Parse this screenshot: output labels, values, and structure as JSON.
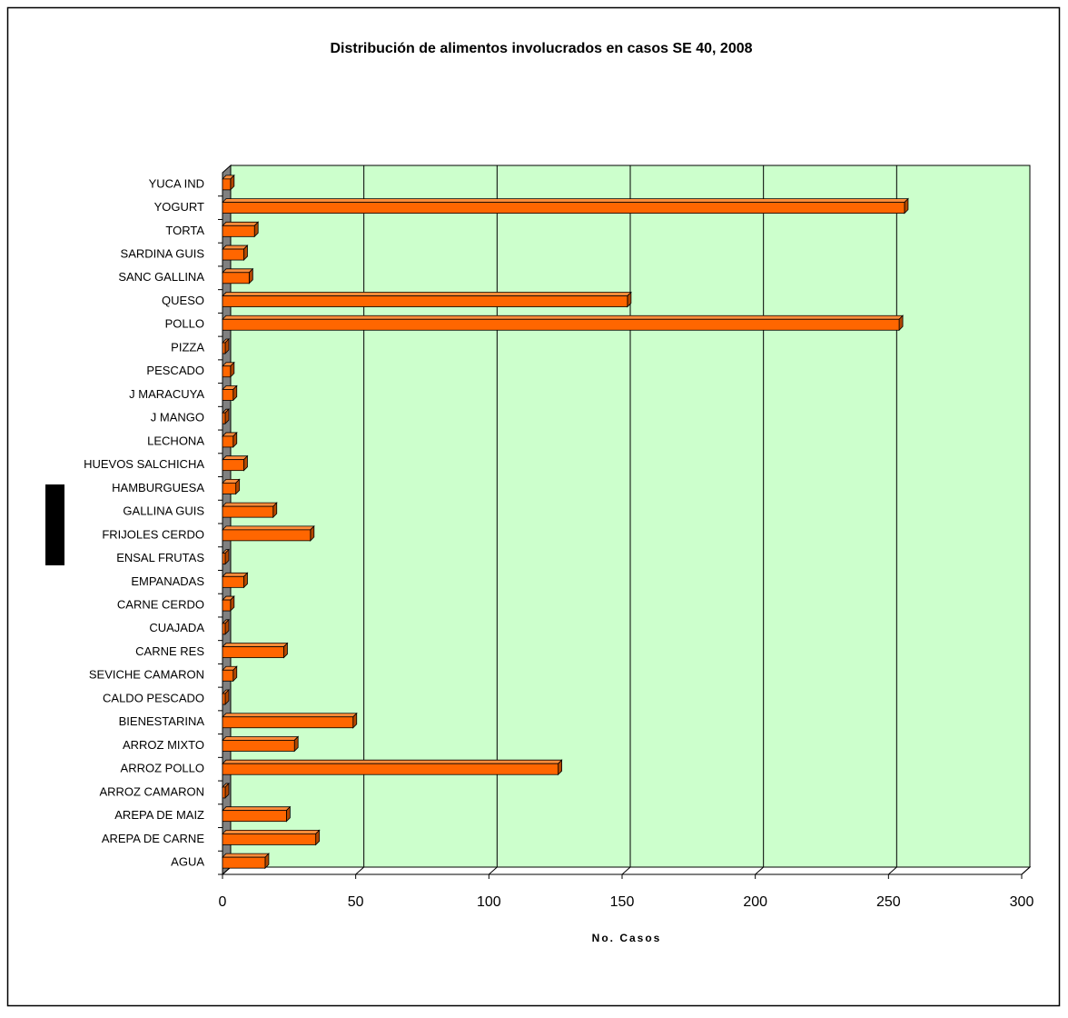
{
  "chart_data": {
    "type": "bar3d-horizontal",
    "title": "Distribución de alimentos involucrados en casos SE 40, 2008",
    "x_label": "No. Casos",
    "categories": [
      "AGUA",
      "AREPA DE CARNE",
      "AREPA DE MAIZ",
      "ARROZ CAMARON",
      "ARROZ POLLO",
      "ARROZ MIXTO",
      "BIENESTARINA",
      "CALDO PESCADO",
      "SEVICHE CAMARON",
      "CARNE RES",
      "CUAJADA",
      "CARNE CERDO",
      "EMPANADAS",
      "ENSAL FRUTAS",
      "FRIJOLES CERDO",
      "GALLINA GUIS",
      "HAMBURGUESA",
      "HUEVOS SALCHICHA",
      "LECHONA",
      "J MANGO",
      "J MARACUYA",
      "PESCADO",
      "PIZZA",
      "POLLO",
      "QUESO",
      "SANC GALLINA",
      "SARDINA GUIS",
      "TORTA",
      "YOGURT",
      "YUCA IND"
    ],
    "values": [
      16,
      35,
      24,
      1,
      126,
      27,
      49,
      1,
      4,
      23,
      1,
      3,
      8,
      1,
      33,
      19,
      5,
      8,
      4,
      1,
      4,
      3,
      1,
      254,
      152,
      10,
      8,
      12,
      256,
      3
    ],
    "color": "#ff6600",
    "xlim": [
      0,
      300
    ],
    "xticks": [
      0,
      50,
      100,
      150,
      200,
      250,
      300
    ],
    "grid": true,
    "background": "#ccffcc"
  }
}
